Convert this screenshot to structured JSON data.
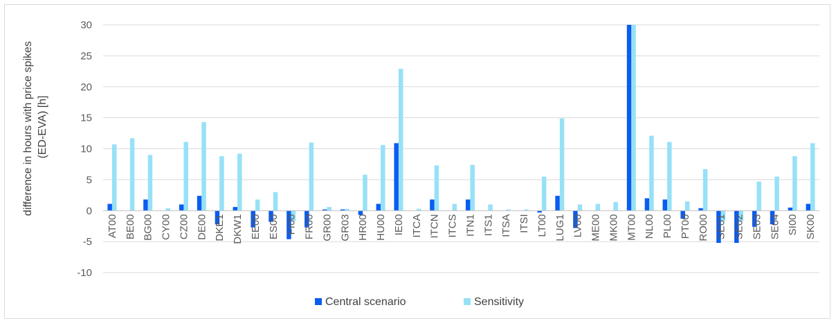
{
  "chart_data": {
    "type": "bar",
    "ylabel": "difference in hours with price spikes (ED-EVA) [h]",
    "ylabel_lines": [
      "difference in hours with price spikes",
      "(ED-EVA) [h]"
    ],
    "ylim": [
      -10,
      30
    ],
    "yticks": [
      -10,
      -5,
      0,
      5,
      10,
      15,
      20,
      25,
      30
    ],
    "grid": true,
    "legend_position": "bottom",
    "categories": [
      "AT00",
      "BE00",
      "BG00",
      "CY00",
      "CZ00",
      "DE00",
      "DKE1",
      "DKW1",
      "EE00",
      "ES00",
      "FI00",
      "FR00",
      "GR00",
      "GR03",
      "HR00",
      "HU00",
      "IE00",
      "ITCA",
      "ITCN",
      "ITCS",
      "ITN1",
      "ITS1",
      "ITSA",
      "ITSI",
      "LT00",
      "LUG1",
      "LV00",
      "ME00",
      "MK00",
      "MT00",
      "NL00",
      "PL00",
      "PT00",
      "RO00",
      "SE01",
      "SE02",
      "SE03",
      "SE04",
      "SI00",
      "SK00"
    ],
    "series": [
      {
        "name": "Central scenario",
        "color": "#0b5cf0",
        "values": [
          1.1,
          0,
          1.8,
          0,
          1.0,
          2.4,
          -2.2,
          0.6,
          -2.7,
          -1.8,
          -4.6,
          -2.7,
          0.2,
          0.2,
          -0.7,
          1.1,
          10.9,
          0,
          1.8,
          0,
          1.8,
          0,
          0,
          0,
          -0.3,
          2.4,
          -2.8,
          0,
          0,
          30,
          2.0,
          1.8,
          -1.3,
          0.4,
          -5.2,
          -5.2,
          -2.6,
          -2.2,
          0.5,
          1.1
        ]
      },
      {
        "name": "Sensitivity",
        "color": "#97e1f7",
        "values": [
          10.7,
          11.7,
          9.0,
          0.4,
          11.1,
          14.3,
          8.8,
          9.2,
          1.8,
          3.0,
          -1.7,
          11.0,
          0.6,
          0.3,
          5.8,
          10.6,
          22.9,
          0.3,
          7.3,
          1.1,
          7.4,
          1.0,
          0.2,
          0.2,
          5.5,
          14.9,
          1.0,
          1.1,
          1.4,
          30,
          12.1,
          11.1,
          1.5,
          6.7,
          -1.7,
          -1.7,
          4.7,
          5.5,
          8.8,
          10.9
        ]
      }
    ]
  }
}
